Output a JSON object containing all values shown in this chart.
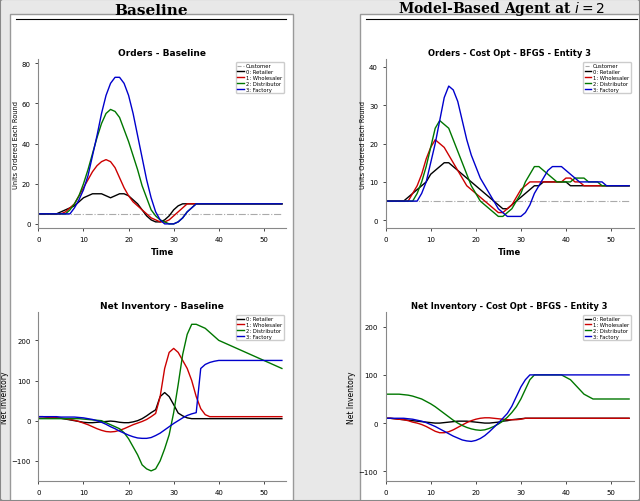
{
  "title_left": "Baseline",
  "title_right": "Model-Based Agent at $i = 2$",
  "plot_titles": {
    "tl": "Orders - Baseline",
    "tr": "Orders - Cost Opt - BFGS - Entity 3",
    "bl": "Net Inventory - Baseline",
    "br": "Net Inventory - Cost Opt - BFGS - Entity 3"
  },
  "time": [
    0,
    1,
    2,
    3,
    4,
    5,
    6,
    7,
    8,
    9,
    10,
    11,
    12,
    13,
    14,
    15,
    16,
    17,
    18,
    19,
    20,
    21,
    22,
    23,
    24,
    25,
    26,
    27,
    28,
    29,
    30,
    31,
    32,
    33,
    34,
    35,
    36,
    37,
    38,
    39,
    40,
    41,
    42,
    43,
    44,
    45,
    46,
    47,
    48,
    49,
    50,
    51,
    52,
    53,
    54
  ],
  "orders_baseline": {
    "customer": [
      5,
      5,
      5,
      5,
      5,
      5,
      5,
      5,
      5,
      5,
      5,
      5,
      5,
      5,
      5,
      5,
      5,
      5,
      5,
      5,
      5,
      5,
      5,
      5,
      5,
      5,
      5,
      5,
      5,
      5,
      5,
      5,
      5,
      5,
      5,
      5,
      5,
      5,
      5,
      5,
      5,
      5,
      5,
      5,
      5,
      5,
      5,
      5,
      5,
      5,
      5,
      5,
      5,
      5,
      5
    ],
    "retailer": [
      5,
      5,
      5,
      5,
      5,
      6,
      7,
      8,
      9,
      11,
      13,
      14,
      15,
      15,
      15,
      14,
      13,
      14,
      15,
      15,
      14,
      12,
      10,
      7,
      4,
      2,
      1,
      1,
      2,
      4,
      7,
      9,
      10,
      10,
      10,
      10,
      10,
      10,
      10,
      10,
      10,
      10,
      10,
      10,
      10,
      10,
      10,
      10,
      10,
      10,
      10,
      10,
      10,
      10,
      10
    ],
    "wholesaler": [
      5,
      5,
      5,
      5,
      5,
      5,
      6,
      8,
      10,
      14,
      18,
      22,
      26,
      29,
      31,
      32,
      31,
      28,
      23,
      18,
      14,
      11,
      9,
      7,
      5,
      3,
      2,
      1,
      1,
      2,
      4,
      6,
      8,
      10,
      10,
      10,
      10,
      10,
      10,
      10,
      10,
      10,
      10,
      10,
      10,
      10,
      10,
      10,
      10,
      10,
      10,
      10,
      10,
      10,
      10
    ],
    "distributor": [
      5,
      5,
      5,
      5,
      5,
      5,
      5,
      7,
      10,
      14,
      20,
      27,
      35,
      43,
      50,
      55,
      57,
      56,
      53,
      47,
      41,
      34,
      27,
      19,
      13,
      7,
      4,
      2,
      1,
      0,
      0,
      1,
      3,
      6,
      8,
      10,
      10,
      10,
      10,
      10,
      10,
      10,
      10,
      10,
      10,
      10,
      10,
      10,
      10,
      10,
      10,
      10,
      10,
      10,
      10
    ],
    "factory": [
      5,
      5,
      5,
      5,
      5,
      5,
      5,
      5,
      8,
      12,
      17,
      24,
      34,
      44,
      55,
      64,
      70,
      73,
      73,
      70,
      64,
      55,
      44,
      33,
      22,
      13,
      6,
      2,
      0,
      0,
      0,
      1,
      3,
      6,
      8,
      10,
      10,
      10,
      10,
      10,
      10,
      10,
      10,
      10,
      10,
      10,
      10,
      10,
      10,
      10,
      10,
      10,
      10,
      10,
      10
    ]
  },
  "orders_model": {
    "customer": [
      5,
      5,
      5,
      5,
      5,
      5,
      5,
      5,
      5,
      5,
      5,
      5,
      5,
      5,
      5,
      5,
      5,
      5,
      5,
      5,
      5,
      5,
      5,
      5,
      5,
      5,
      5,
      5,
      5,
      5,
      5,
      5,
      5,
      5,
      5,
      5,
      5,
      5,
      5,
      5,
      5,
      5,
      5,
      5,
      5,
      5,
      5,
      5,
      5,
      5,
      5,
      5,
      5,
      5,
      5
    ],
    "retailer": [
      5,
      5,
      5,
      5,
      5,
      6,
      7,
      8,
      9,
      10,
      12,
      13,
      14,
      15,
      15,
      14,
      13,
      12,
      11,
      10,
      9,
      8,
      7,
      6,
      5,
      4,
      3,
      3,
      4,
      5,
      6,
      7,
      8,
      9,
      9,
      10,
      10,
      10,
      10,
      10,
      10,
      9,
      9,
      9,
      9,
      9,
      9,
      9,
      9,
      9,
      9,
      9,
      9,
      9,
      9
    ],
    "wholesaler": [
      5,
      5,
      5,
      5,
      5,
      5,
      7,
      9,
      12,
      16,
      19,
      21,
      20,
      19,
      17,
      15,
      13,
      11,
      9,
      8,
      7,
      6,
      5,
      4,
      3,
      2,
      2,
      3,
      4,
      6,
      8,
      9,
      10,
      10,
      10,
      10,
      10,
      10,
      10,
      10,
      11,
      11,
      10,
      10,
      9,
      9,
      9,
      9,
      9,
      9,
      9,
      9,
      9,
      9,
      9
    ],
    "distributor": [
      5,
      5,
      5,
      5,
      5,
      5,
      5,
      7,
      10,
      14,
      19,
      24,
      26,
      25,
      24,
      21,
      18,
      15,
      12,
      9,
      7,
      5,
      4,
      3,
      2,
      1,
      1,
      2,
      3,
      5,
      7,
      10,
      12,
      14,
      14,
      13,
      12,
      11,
      10,
      10,
      10,
      10,
      11,
      11,
      11,
      10,
      10,
      10,
      9,
      9,
      9,
      9,
      9,
      9,
      9
    ],
    "factory": [
      5,
      5,
      5,
      5,
      5,
      5,
      5,
      5,
      7,
      10,
      15,
      20,
      26,
      32,
      35,
      34,
      31,
      26,
      21,
      17,
      14,
      11,
      9,
      7,
      5,
      3,
      2,
      1,
      1,
      1,
      1,
      2,
      4,
      7,
      9,
      11,
      13,
      14,
      14,
      14,
      13,
      12,
      11,
      10,
      10,
      10,
      10,
      10,
      10,
      9,
      9,
      9,
      9,
      9,
      9
    ]
  },
  "inventory_baseline": {
    "retailer": [
      10,
      10,
      9,
      8,
      7,
      6,
      4,
      2,
      0,
      -2,
      -4,
      -5,
      -5,
      -4,
      -3,
      -2,
      -1,
      -2,
      -4,
      -5,
      -5,
      -3,
      0,
      5,
      12,
      20,
      27,
      60,
      70,
      60,
      40,
      19,
      12,
      7,
      5,
      5,
      5,
      5,
      5,
      5,
      5,
      5,
      5,
      5,
      5,
      5,
      5,
      5,
      5,
      5,
      5,
      5,
      5,
      5,
      5
    ],
    "wholesaler": [
      10,
      10,
      9,
      8,
      7,
      6,
      5,
      3,
      1,
      -2,
      -6,
      -10,
      -15,
      -20,
      -24,
      -27,
      -28,
      -27,
      -24,
      -20,
      -15,
      -10,
      -6,
      -2,
      3,
      10,
      18,
      60,
      130,
      170,
      180,
      170,
      150,
      130,
      100,
      60,
      30,
      15,
      10,
      10,
      10,
      10,
      10,
      10,
      10,
      10,
      10,
      10,
      10,
      10,
      10,
      10,
      10,
      10,
      10
    ],
    "distributor": [
      5,
      5,
      5,
      5,
      5,
      5,
      5,
      5,
      5,
      5,
      4,
      3,
      2,
      1,
      0,
      -5,
      -10,
      -15,
      -20,
      -30,
      -45,
      -65,
      -85,
      -110,
      -120,
      -125,
      -120,
      -100,
      -70,
      -35,
      20,
      90,
      165,
      215,
      240,
      240,
      235,
      230,
      220,
      210,
      200,
      195,
      190,
      185,
      180,
      175,
      170,
      165,
      160,
      155,
      150,
      145,
      140,
      135,
      130
    ],
    "factory": [
      10,
      10,
      10,
      10,
      10,
      9,
      9,
      9,
      9,
      8,
      7,
      5,
      3,
      0,
      -4,
      -9,
      -15,
      -20,
      -26,
      -31,
      -36,
      -40,
      -43,
      -44,
      -44,
      -42,
      -37,
      -31,
      -23,
      -15,
      -7,
      0,
      7,
      13,
      17,
      20,
      130,
      140,
      145,
      148,
      150,
      150,
      150,
      150,
      150,
      150,
      150,
      150,
      150,
      150,
      150,
      150,
      150,
      150,
      150
    ]
  },
  "inventory_model": {
    "retailer": [
      10,
      10,
      9,
      8,
      7,
      6,
      5,
      4,
      3,
      2,
      1,
      0,
      0,
      1,
      2,
      3,
      4,
      4,
      4,
      3,
      2,
      1,
      0,
      0,
      1,
      2,
      4,
      5,
      7,
      8,
      9,
      10,
      10,
      10,
      10,
      10,
      10,
      10,
      10,
      10,
      10,
      10,
      10,
      10,
      10,
      10,
      10,
      10,
      10,
      10,
      10,
      10,
      10,
      10,
      10
    ],
    "wholesaler": [
      10,
      10,
      9,
      8,
      7,
      5,
      2,
      0,
      -3,
      -7,
      -12,
      -17,
      -20,
      -20,
      -18,
      -14,
      -9,
      -4,
      1,
      5,
      8,
      10,
      11,
      11,
      10,
      9,
      8,
      7,
      7,
      7,
      8,
      10,
      10,
      10,
      10,
      10,
      10,
      10,
      10,
      10,
      10,
      10,
      10,
      10,
      10,
      10,
      10,
      10,
      10,
      10,
      10,
      10,
      10,
      10,
      10
    ],
    "distributor": [
      60,
      60,
      60,
      60,
      59,
      58,
      56,
      53,
      50,
      45,
      40,
      34,
      27,
      20,
      13,
      6,
      0,
      -5,
      -9,
      -12,
      -14,
      -15,
      -14,
      -11,
      -7,
      -2,
      4,
      12,
      22,
      34,
      50,
      70,
      90,
      100,
      100,
      100,
      100,
      100,
      100,
      100,
      95,
      90,
      80,
      70,
      60,
      55,
      50,
      50,
      50,
      50,
      50,
      50,
      50,
      50,
      50
    ],
    "factory": [
      10,
      10,
      10,
      10,
      10,
      9,
      8,
      6,
      4,
      1,
      -3,
      -7,
      -12,
      -17,
      -22,
      -27,
      -31,
      -35,
      -37,
      -38,
      -36,
      -32,
      -26,
      -18,
      -9,
      0,
      10,
      20,
      35,
      55,
      75,
      90,
      100,
      100,
      100,
      100,
      100,
      100,
      100,
      100,
      100,
      100,
      100,
      100,
      100,
      100,
      100,
      100,
      100,
      100,
      100,
      100,
      100,
      100,
      100
    ]
  },
  "colors": {
    "customer": "#aaaaaa",
    "retailer": "#000000",
    "wholesaler": "#cc0000",
    "distributor": "#007700",
    "factory": "#0000cc"
  },
  "inv_colors": {
    "retailer": "#000000",
    "wholesaler": "#cc0000",
    "distributor": "#007700",
    "factory": "#0000cc"
  },
  "orders_baseline_ylim": [
    -2,
    82
  ],
  "orders_baseline_yticks": [
    0,
    20,
    40,
    60,
    80
  ],
  "orders_model_ylim": [
    -2,
    42
  ],
  "orders_model_yticks": [
    0,
    10,
    20,
    30,
    40
  ],
  "inv_baseline_ylim": [
    -150,
    270
  ],
  "inv_baseline_yticks": [
    -100,
    0,
    100,
    200
  ],
  "inv_model_ylim": [
    -120,
    230
  ],
  "inv_model_yticks": [
    -100,
    0,
    100,
    200
  ],
  "xlim": [
    0,
    55
  ],
  "xticks": [
    0,
    10,
    20,
    30,
    40,
    50
  ],
  "bg_color": "#e8e8e8",
  "panel_bg": "#ffffff"
}
